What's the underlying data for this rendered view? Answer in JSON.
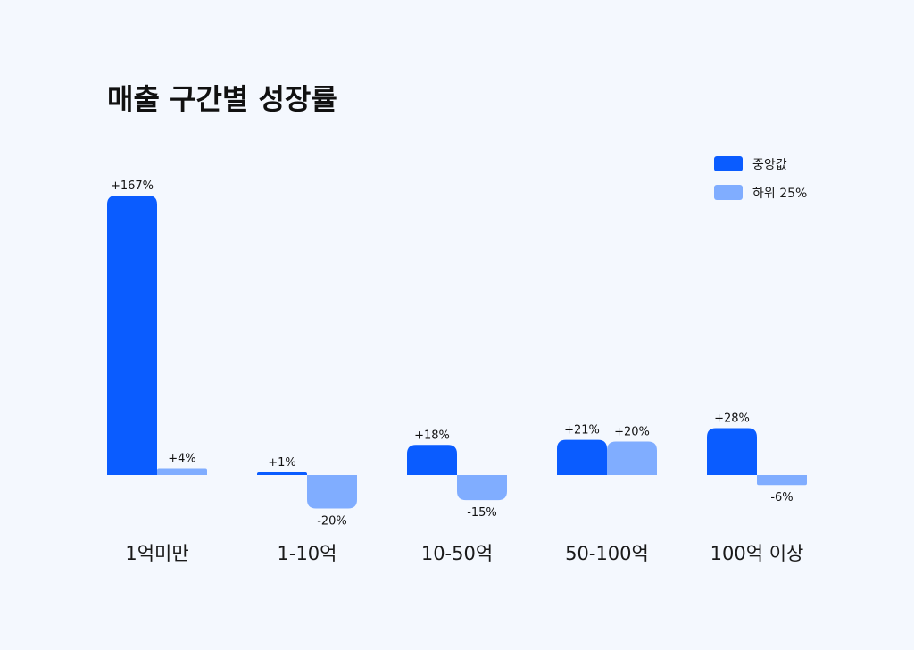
{
  "chart_data": {
    "type": "bar",
    "title": "매출 구간별 성장률",
    "categories": [
      "1억미만",
      "1-10억",
      "10-50억",
      "50-100억",
      "100억 이상"
    ],
    "series": [
      {
        "name": "중앙값",
        "color": "#0a5cff",
        "values": [
          167,
          1,
          18,
          21,
          28
        ],
        "labels": [
          "+167%",
          "+1%",
          "+18%",
          "+21%",
          "+28%"
        ]
      },
      {
        "name": "하위 25%",
        "color": "#80adff",
        "values": [
          4,
          -20,
          -15,
          20,
          -6
        ],
        "labels": [
          "+4%",
          "-20%",
          "-15%",
          "+20%",
          "-6%"
        ]
      }
    ],
    "legend_position": "top-right",
    "grid": false
  }
}
